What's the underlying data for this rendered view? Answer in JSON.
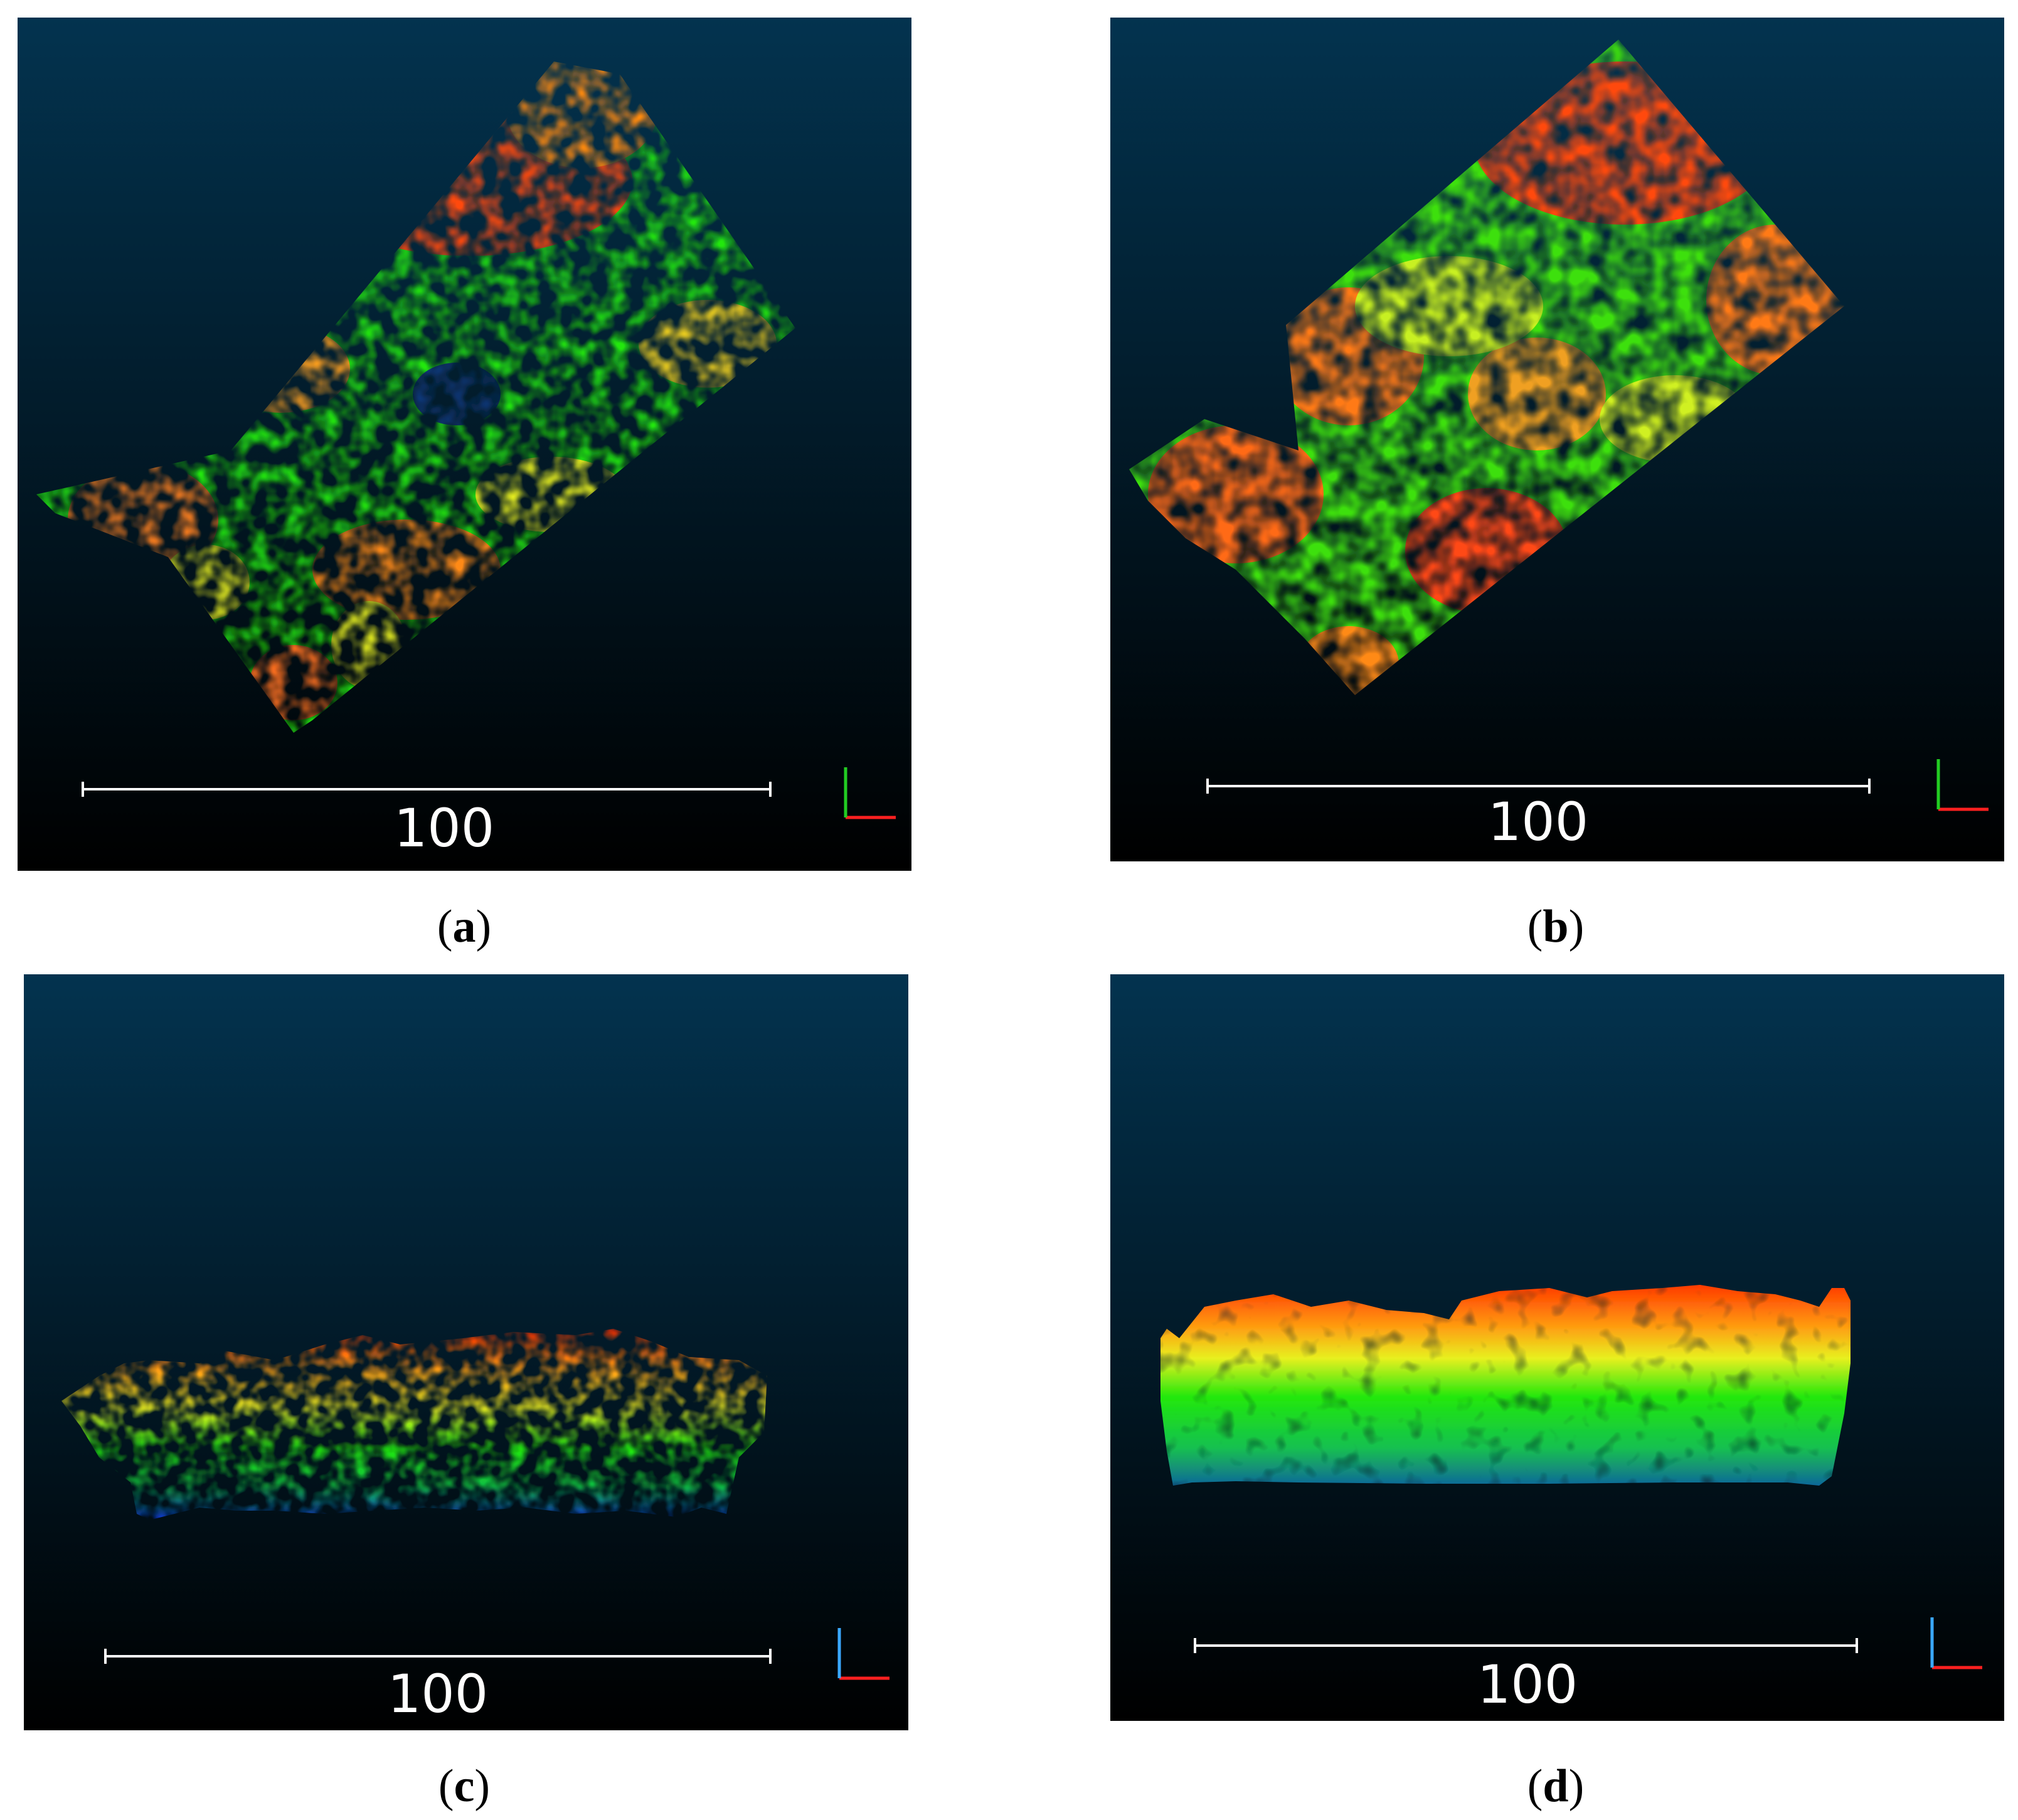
{
  "panels": [
    {
      "id": "a",
      "view": "top",
      "scale_label": "100",
      "caption_letter": "a"
    },
    {
      "id": "b",
      "view": "top",
      "scale_label": "100",
      "caption_letter": "b"
    },
    {
      "id": "c",
      "view": "side",
      "scale_label": "100",
      "caption_letter": "c"
    },
    {
      "id": "d",
      "view": "side",
      "scale_label": "100",
      "caption_letter": "d"
    }
  ],
  "colors": {
    "bg_top": "#03334f",
    "bg_bottom": "#000000",
    "high": "#ff2a00",
    "mid_high": "#ff9a10",
    "yellow": "#e8f020",
    "green": "#22e80c",
    "low": "#0a2cd8",
    "axis_x": "#ff2020",
    "axis_y": "#22cc22",
    "axis_z": "#3aa8ff"
  }
}
